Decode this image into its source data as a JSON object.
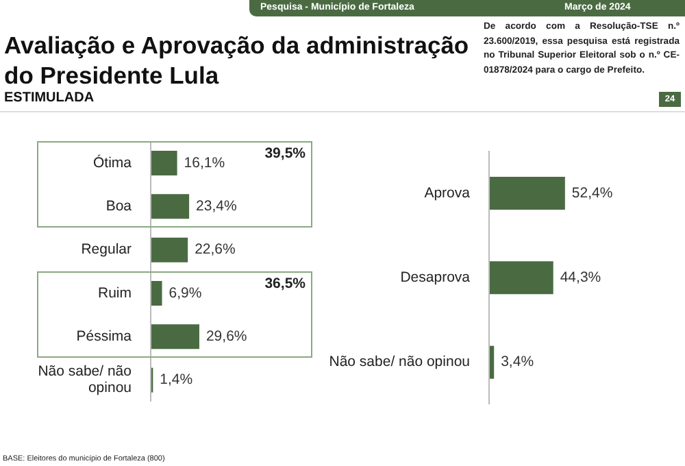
{
  "chart_data": [
    {
      "type": "bar",
      "orientation": "horizontal",
      "title": "Avaliação e Aprovação da administração do Presidente Lula",
      "subtitle": "ESTIMULADA",
      "categories": [
        "Ótima",
        "Boa",
        "Regular",
        "Ruim",
        "Péssima",
        "Não sabe/ não opinou"
      ],
      "values": [
        16.1,
        23.4,
        22.6,
        6.9,
        29.6,
        1.4
      ],
      "color": "#4a6b42",
      "value_labels": [
        "16,1%",
        "23,4%",
        "22,6%",
        "6,9%",
        "29,6%",
        "1,4%"
      ],
      "annotations": [
        "Pesquisa - Município de Fortaleza",
        "Março de 2024",
        "De acordo com a Resolução-TSE n.º 23.600/2019, essa pesquisa está registrada no Tribunal Superior Eleitoral sob o n.º CE-01878/2024 para o cargo de Prefeito.",
        "24",
        "BASE: Eleitores do município de Fortaleza (800)",
        "39,5%",
        "36,5%"
      ]
    },
    {
      "type": "bar",
      "orientation": "horizontal",
      "categories": [
        "Aprova",
        "Desaprova",
        "Não sabe/ não opinou"
      ],
      "values": [
        52.4,
        44.3,
        3.4
      ],
      "color": "#4a6b42",
      "value_labels": [
        "52,4%",
        "44,3%",
        "3,4%"
      ]
    }
  ]
}
